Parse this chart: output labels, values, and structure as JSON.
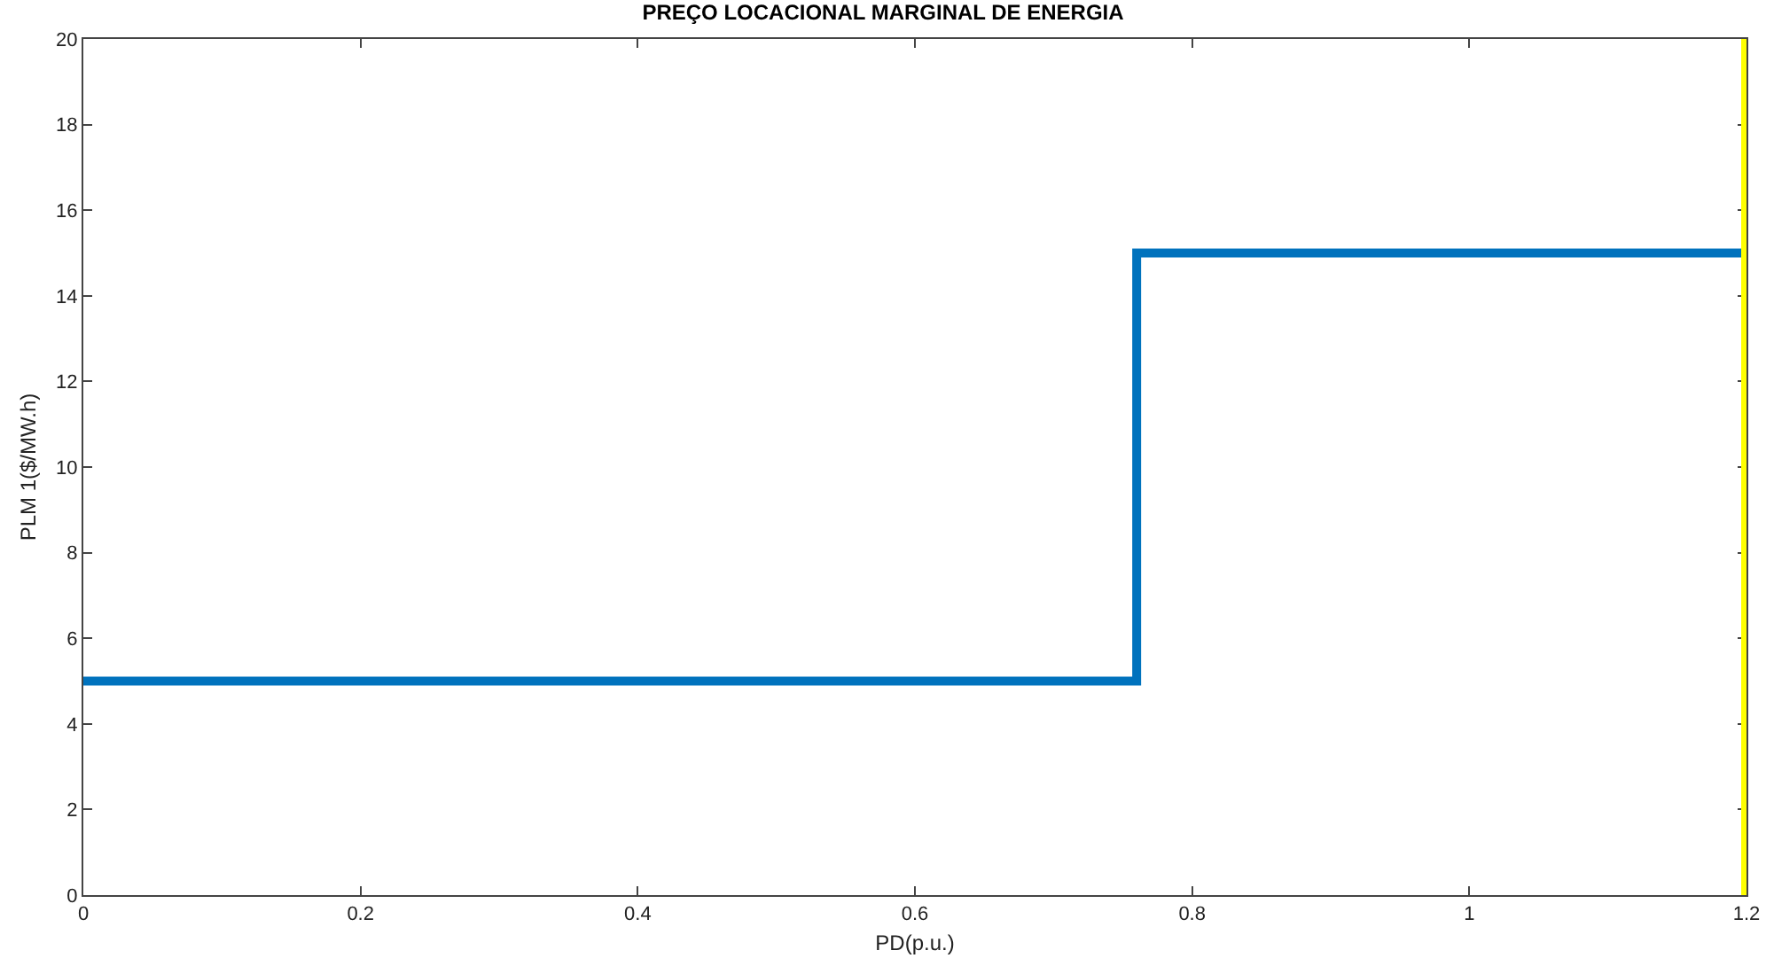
{
  "chart_data": {
    "type": "step",
    "title": "PREÇO LOCACIONAL MARGINAL DE ENERGIA",
    "xlabel": "PD(p.u.)",
    "ylabel": "PLM 1($/MW.h)",
    "x": [
      0,
      0.76,
      1.2
    ],
    "series": [
      {
        "color": "#0072bd",
        "values": [
          5,
          15,
          15
        ]
      }
    ],
    "xlim": [
      0,
      1.2
    ],
    "xticks": [
      0,
      0.2,
      0.4,
      0.6,
      0.8,
      1,
      1.2
    ],
    "ylim": [
      0,
      20
    ],
    "yticks": [
      0,
      2,
      4,
      6,
      8,
      10,
      12,
      14,
      16,
      18,
      20
    ],
    "ref_lines": [
      {
        "axis": "x",
        "value": 1.2,
        "color": "#ffff00"
      }
    ],
    "grid": false,
    "marker": "none",
    "line_style": "solid"
  }
}
